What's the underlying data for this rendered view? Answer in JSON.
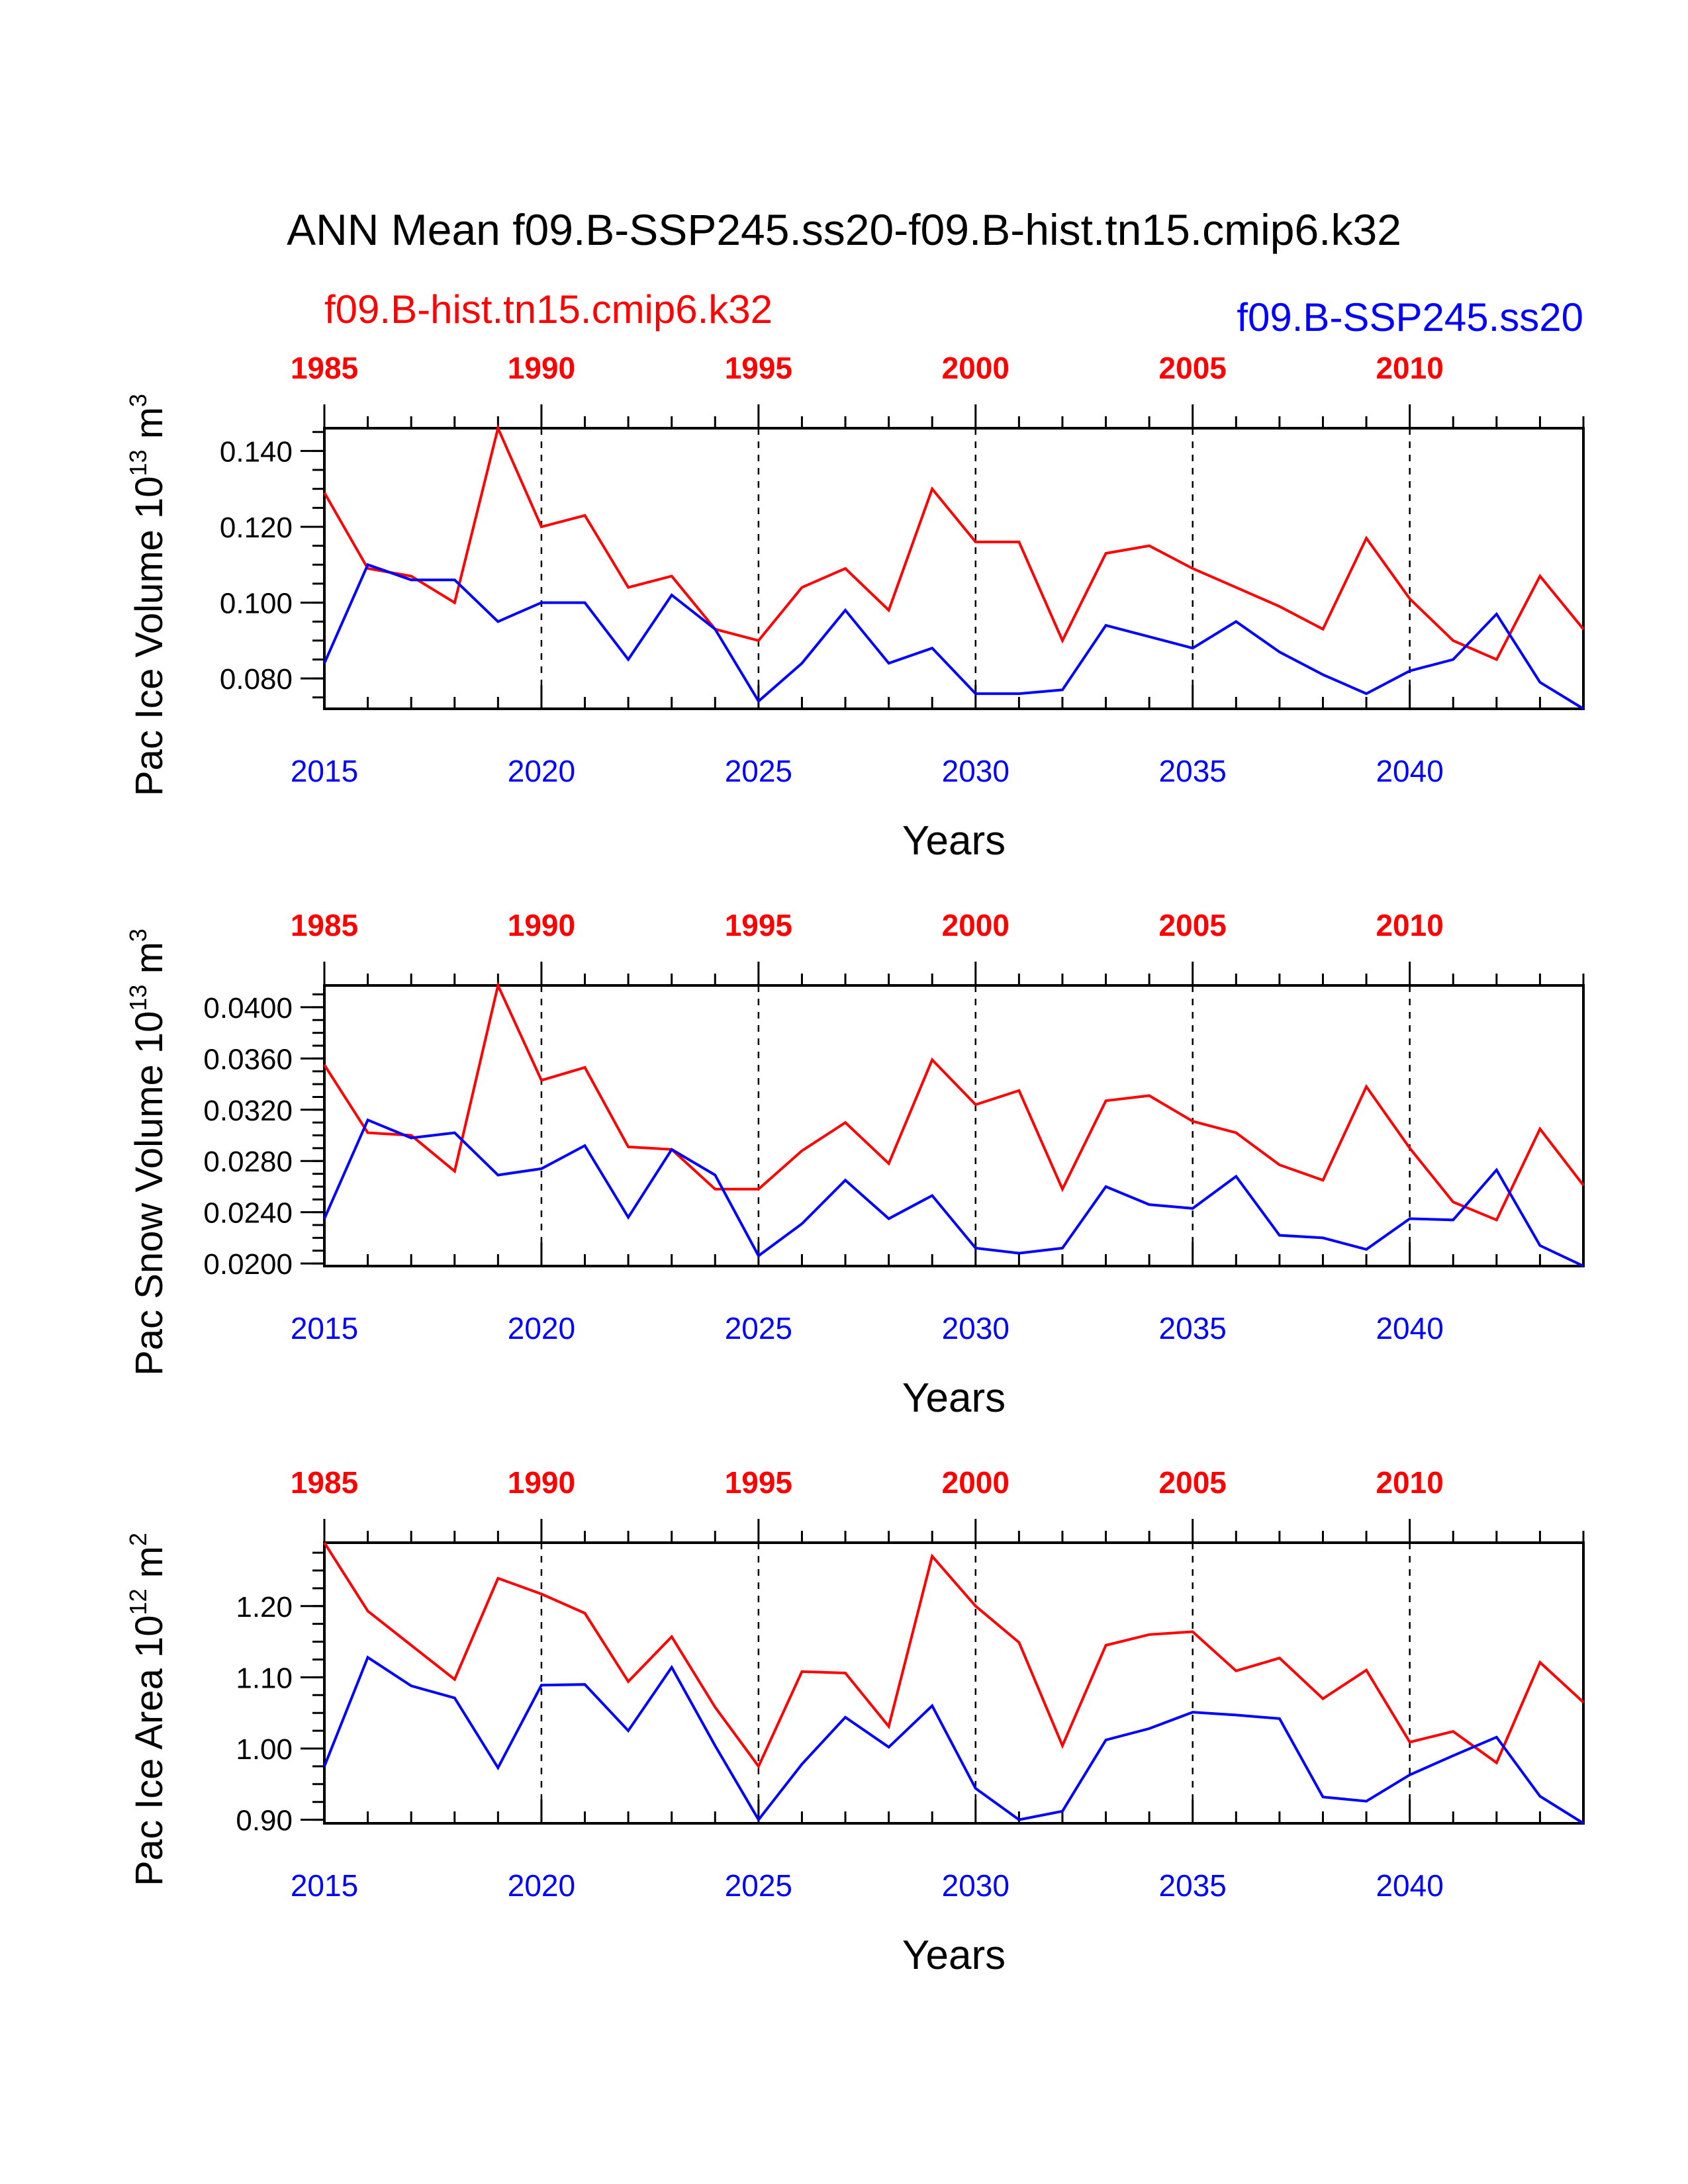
{
  "title": "ANN Mean f09.B-SSP245.ss20-f09.B-hist.tn15.cmip6.k32",
  "case_hist": "f09.B-hist.tn15.cmip6.k32",
  "case_ssp": "f09.B-SSP245.ss20",
  "colors": {
    "hist": "#ff0000",
    "ssp": "#0000ff"
  },
  "chart_data": [
    {
      "type": "line",
      "ylabel": {
        "main": "Pac Ice Volume 10",
        "exp": "13",
        "unit": " m",
        "unit_exp": "3"
      },
      "xlabel": "Years",
      "ylim": [
        0.072,
        0.146
      ],
      "yticks": [
        0.08,
        0.1,
        0.12,
        0.14
      ],
      "ytick_labels": [
        "0.080",
        "0.100",
        "0.120",
        "0.140"
      ],
      "grid": "dashed vertical at labeled years",
      "x_bottom": [
        2015,
        2016,
        2017,
        2018,
        2019,
        2020,
        2021,
        2022,
        2023,
        2024,
        2025,
        2026,
        2027,
        2028,
        2029,
        2030,
        2031,
        2032,
        2033,
        2034,
        2035,
        2036,
        2037,
        2038,
        2039,
        2040,
        2041,
        2042,
        2043,
        2044
      ],
      "x_top": [
        1985,
        1986,
        1987,
        1988,
        1989,
        1990,
        1991,
        1992,
        1993,
        1994,
        1995,
        1996,
        1997,
        1998,
        1999,
        2000,
        2001,
        2002,
        2003,
        2004,
        2005,
        2006,
        2007,
        2008,
        2009,
        2010,
        2011,
        2012,
        2013,
        2014
      ],
      "bottom_tick_labels": [
        "2015",
        "2020",
        "2025",
        "2030",
        "2035",
        "2040"
      ],
      "top_tick_labels": [
        "1985",
        "1990",
        "1995",
        "2000",
        "2005",
        "2010"
      ],
      "series": [
        {
          "name": "f09.B-hist.tn15.cmip6.k32",
          "values": [
            0.129,
            0.109,
            0.107,
            0.1,
            0.146,
            0.12,
            0.123,
            0.104,
            0.107,
            0.093,
            0.09,
            0.104,
            0.109,
            0.098,
            0.13,
            0.116,
            0.116,
            0.09,
            0.113,
            0.115,
            0.109,
            0.104,
            0.099,
            0.093,
            0.117,
            0.101,
            0.09,
            0.085,
            0.107,
            0.093
          ]
        },
        {
          "name": "f09.B-SSP245.ss20",
          "values": [
            0.084,
            0.11,
            0.106,
            0.106,
            0.095,
            0.1,
            0.1,
            0.085,
            0.102,
            0.093,
            0.074,
            0.084,
            0.098,
            0.084,
            0.088,
            0.076,
            0.076,
            0.077,
            0.094,
            0.091,
            0.088,
            0.095,
            0.087,
            0.081,
            0.076,
            0.082,
            0.085,
            0.097,
            0.079,
            0.072
          ]
        }
      ]
    },
    {
      "type": "line",
      "ylabel": {
        "main": "Pac Snow Volume 10",
        "exp": "13",
        "unit": " m",
        "unit_exp": "3"
      },
      "xlabel": "Years",
      "ylim": [
        0.0198,
        0.0417
      ],
      "yticks": [
        0.02,
        0.024,
        0.028,
        0.032,
        0.036,
        0.04
      ],
      "ytick_labels": [
        "0.0200",
        "0.0240",
        "0.0280",
        "0.0320",
        "0.0360",
        "0.0400"
      ],
      "grid": "dashed vertical at labeled years",
      "x_bottom": [
        2015,
        2016,
        2017,
        2018,
        2019,
        2020,
        2021,
        2022,
        2023,
        2024,
        2025,
        2026,
        2027,
        2028,
        2029,
        2030,
        2031,
        2032,
        2033,
        2034,
        2035,
        2036,
        2037,
        2038,
        2039,
        2040,
        2041,
        2042,
        2043,
        2044
      ],
      "x_top": [
        1985,
        1986,
        1987,
        1988,
        1989,
        1990,
        1991,
        1992,
        1993,
        1994,
        1995,
        1996,
        1997,
        1998,
        1999,
        2000,
        2001,
        2002,
        2003,
        2004,
        2005,
        2006,
        2007,
        2008,
        2009,
        2010,
        2011,
        2012,
        2013,
        2014
      ],
      "bottom_tick_labels": [
        "2015",
        "2020",
        "2025",
        "2030",
        "2035",
        "2040"
      ],
      "top_tick_labels": [
        "1985",
        "1990",
        "1995",
        "2000",
        "2005",
        "2010"
      ],
      "series": [
        {
          "name": "f09.B-hist.tn15.cmip6.k32",
          "values": [
            0.0355,
            0.0302,
            0.03,
            0.0272,
            0.0417,
            0.0343,
            0.0353,
            0.0291,
            0.0289,
            0.0258,
            0.0258,
            0.0288,
            0.031,
            0.0278,
            0.0359,
            0.0324,
            0.0335,
            0.0258,
            0.0327,
            0.0331,
            0.0311,
            0.0302,
            0.0277,
            0.0265,
            0.0338,
            0.029,
            0.0248,
            0.0234,
            0.0305,
            0.0261
          ]
        },
        {
          "name": "f09.B-SSP245.ss20",
          "values": [
            0.0235,
            0.0312,
            0.0298,
            0.0302,
            0.0269,
            0.0274,
            0.0292,
            0.0236,
            0.0289,
            0.0269,
            0.0206,
            0.0231,
            0.0265,
            0.0235,
            0.0253,
            0.0212,
            0.0208,
            0.0212,
            0.026,
            0.0246,
            0.0243,
            0.0268,
            0.0222,
            0.022,
            0.0211,
            0.0235,
            0.0234,
            0.0273,
            0.0214,
            0.0198
          ]
        }
      ]
    },
    {
      "type": "line",
      "ylabel": {
        "main": "Pac Ice Area 10",
        "exp": "12",
        "unit": " m",
        "unit_exp": "2"
      },
      "xlabel": "Years",
      "ylim": [
        0.895,
        1.289
      ],
      "yticks": [
        0.9,
        1.0,
        1.1,
        1.2
      ],
      "ytick_labels": [
        "0.90",
        "1.00",
        "1.10",
        "1.20"
      ],
      "grid": "dashed vertical at labeled years",
      "x_bottom": [
        2015,
        2016,
        2017,
        2018,
        2019,
        2020,
        2021,
        2022,
        2023,
        2024,
        2025,
        2026,
        2027,
        2028,
        2029,
        2030,
        2031,
        2032,
        2033,
        2034,
        2035,
        2036,
        2037,
        2038,
        2039,
        2040,
        2041,
        2042,
        2043,
        2044
      ],
      "x_top": [
        1985,
        1986,
        1987,
        1988,
        1989,
        1990,
        1991,
        1992,
        1993,
        1994,
        1995,
        1996,
        1997,
        1998,
        1999,
        2000,
        2001,
        2002,
        2003,
        2004,
        2005,
        2006,
        2007,
        2008,
        2009,
        2010,
        2011,
        2012,
        2013,
        2014
      ],
      "bottom_tick_labels": [
        "2015",
        "2020",
        "2025",
        "2030",
        "2035",
        "2040"
      ],
      "top_tick_labels": [
        "1985",
        "1990",
        "1995",
        "2000",
        "2005",
        "2010"
      ],
      "series": [
        {
          "name": "f09.B-hist.tn15.cmip6.k32",
          "values": [
            1.289,
            1.193,
            1.145,
            1.097,
            1.239,
            1.217,
            1.19,
            1.094,
            1.157,
            1.058,
            0.975,
            1.108,
            1.106,
            1.031,
            1.27,
            1.2,
            1.149,
            1.004,
            1.145,
            1.16,
            1.164,
            1.109,
            1.127,
            1.07,
            1.11,
            1.009,
            1.024,
            0.98,
            1.121,
            1.065
          ]
        },
        {
          "name": "f09.B-SSP245.ss20",
          "values": [
            0.975,
            1.128,
            1.088,
            1.071,
            0.973,
            1.089,
            1.09,
            1.025,
            1.114,
            1.004,
            0.9,
            0.978,
            1.044,
            1.002,
            1.06,
            0.944,
            0.9,
            0.912,
            1.012,
            1.028,
            1.051,
            1.047,
            1.042,
            0.932,
            0.926,
            0.963,
            0.99,
            1.016,
            0.933,
            0.895
          ]
        }
      ]
    }
  ]
}
